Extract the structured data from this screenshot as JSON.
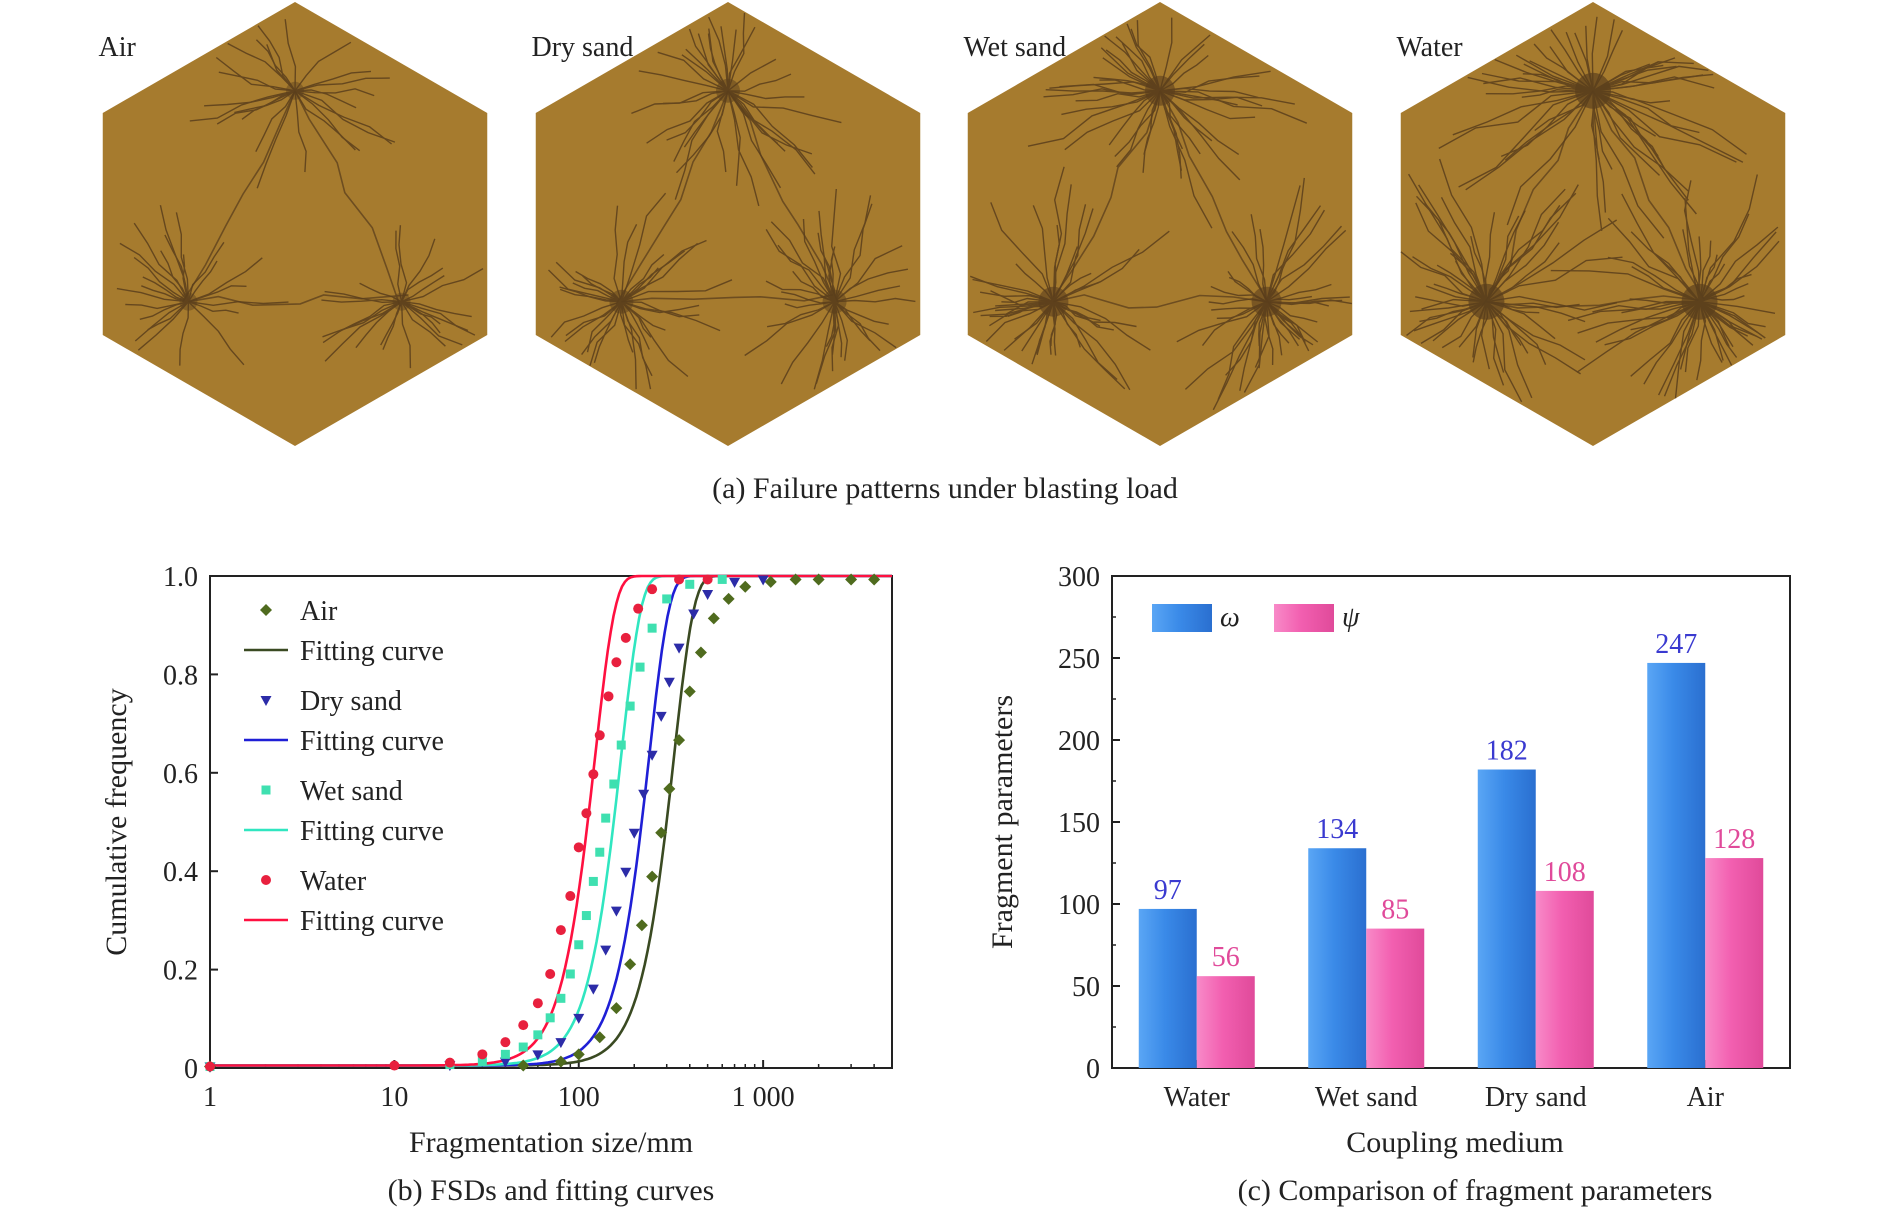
{
  "panel_a": {
    "caption": "(a) Failure patterns under blasting load",
    "specimens": [
      {
        "label": "Air",
        "fill": "#a67b2e",
        "crack": "#5a3e1c",
        "density": 1
      },
      {
        "label": "Dry sand",
        "fill": "#a67b2e",
        "crack": "#5a3e1c",
        "density": 2
      },
      {
        "label": "Wet sand",
        "fill": "#a67b2e",
        "crack": "#5a3e1c",
        "density": 3
      },
      {
        "label": "Water",
        "fill": "#a67b2e",
        "crack": "#5a3e1c",
        "density": 4
      }
    ]
  },
  "chart_data": [
    {
      "type": "scatter",
      "caption": "(b) FSDs and fitting curves",
      "xlabel": "Fragmentation size/mm",
      "ylabel": "Cumulative frequency",
      "xscale": "log",
      "xlim": [
        1,
        5000
      ],
      "ylim": [
        0,
        1.0
      ],
      "xticks": [
        1,
        10,
        100,
        1000
      ],
      "xtick_labels": [
        "1",
        "10",
        "100",
        "1 000"
      ],
      "yticks": [
        0,
        0.2,
        0.4,
        0.6,
        0.8,
        1.0
      ],
      "ytick_labels": [
        "0",
        "0.2",
        "0.4",
        "0.6",
        "0.8",
        "1.0"
      ],
      "legend_position": "top-left",
      "series": [
        {
          "name": "Air",
          "marker": "diamond",
          "color": "#4f6b1e",
          "fit_color": "#3a4a22",
          "fit_name": "Fitting curve",
          "x50": 300,
          "n": 4.0,
          "points": [
            [
              1,
              0
            ],
            [
              50,
              0.002
            ],
            [
              80,
              0.01
            ],
            [
              100,
              0.025
            ],
            [
              130,
              0.06
            ],
            [
              160,
              0.12
            ],
            [
              190,
              0.21
            ],
            [
              220,
              0.29
            ],
            [
              250,
              0.39
            ],
            [
              280,
              0.48
            ],
            [
              310,
              0.57
            ],
            [
              350,
              0.67
            ],
            [
              400,
              0.77
            ],
            [
              460,
              0.85
            ],
            [
              540,
              0.92
            ],
            [
              650,
              0.96
            ],
            [
              800,
              0.985
            ],
            [
              1100,
              0.995
            ],
            [
              1500,
              1.0
            ],
            [
              2000,
              1.0
            ],
            [
              3000,
              1.0
            ],
            [
              4000,
              1.0
            ]
          ]
        },
        {
          "name": "Dry sand",
          "marker": "triangle-down",
          "color": "#2c2ca8",
          "fit_color": "#1f1fd6",
          "fit_name": "Fitting curve",
          "x50": 220,
          "n": 4.0,
          "points": [
            [
              1,
              0
            ],
            [
              20,
              0.003
            ],
            [
              40,
              0.01
            ],
            [
              60,
              0.025
            ],
            [
              80,
              0.05
            ],
            [
              100,
              0.1
            ],
            [
              120,
              0.16
            ],
            [
              140,
              0.24
            ],
            [
              160,
              0.32
            ],
            [
              180,
              0.4
            ],
            [
              200,
              0.48
            ],
            [
              225,
              0.56
            ],
            [
              250,
              0.64
            ],
            [
              280,
              0.72
            ],
            [
              310,
              0.79
            ],
            [
              350,
              0.86
            ],
            [
              420,
              0.93
            ],
            [
              500,
              0.97
            ],
            [
              700,
              0.995
            ],
            [
              1000,
              1.0
            ]
          ]
        },
        {
          "name": "Wet sand",
          "marker": "square",
          "color": "#3fe0b0",
          "fit_color": "#30e6c0",
          "fit_name": "Fitting curve",
          "x50": 155,
          "n": 4.0,
          "points": [
            [
              1,
              0
            ],
            [
              20,
              0.004
            ],
            [
              30,
              0.01
            ],
            [
              40,
              0.025
            ],
            [
              50,
              0.04
            ],
            [
              60,
              0.065
            ],
            [
              70,
              0.1
            ],
            [
              80,
              0.14
            ],
            [
              90,
              0.19
            ],
            [
              100,
              0.25
            ],
            [
              110,
              0.31
            ],
            [
              120,
              0.38
            ],
            [
              130,
              0.44
            ],
            [
              140,
              0.51
            ],
            [
              155,
              0.58
            ],
            [
              170,
              0.66
            ],
            [
              190,
              0.74
            ],
            [
              215,
              0.82
            ],
            [
              250,
              0.9
            ],
            [
              300,
              0.96
            ],
            [
              400,
              0.99
            ],
            [
              600,
              1.0
            ]
          ]
        },
        {
          "name": "Water",
          "marker": "circle",
          "color": "#e8203e",
          "fit_color": "#ff1040",
          "fit_name": "Fitting curve",
          "x50": 112,
          "n": 4.0,
          "points": [
            [
              1,
              0
            ],
            [
              10,
              0.002
            ],
            [
              20,
              0.008
            ],
            [
              30,
              0.025
            ],
            [
              40,
              0.05
            ],
            [
              50,
              0.085
            ],
            [
              60,
              0.13
            ],
            [
              70,
              0.19
            ],
            [
              80,
              0.28
            ],
            [
              90,
              0.35
            ],
            [
              100,
              0.45
            ],
            [
              110,
              0.52
            ],
            [
              120,
              0.6
            ],
            [
              130,
              0.68
            ],
            [
              145,
              0.76
            ],
            [
              160,
              0.83
            ],
            [
              180,
              0.88
            ],
            [
              210,
              0.94
            ],
            [
              250,
              0.98
            ],
            [
              350,
              1.0
            ],
            [
              500,
              1.0
            ]
          ]
        }
      ]
    },
    {
      "type": "bar",
      "caption": "(c) Comparison of fragment parameters",
      "xlabel": "Coupling medium",
      "ylabel": "Fragment parameters",
      "categories": [
        "Water",
        "Wet sand",
        "Dry sand",
        "Air"
      ],
      "ylim": [
        0,
        300
      ],
      "yticks": [
        0,
        50,
        100,
        150,
        200,
        250,
        300
      ],
      "legend_position": "top-left",
      "series": [
        {
          "name": "ω",
          "color": "#3a8ae8",
          "label_color": "#3a3ad0",
          "values": [
            97,
            134,
            182,
            247
          ]
        },
        {
          "name": "ψ",
          "color": "#f25fb0",
          "label_color": "#e04a9a",
          "values": [
            56,
            85,
            108,
            128
          ]
        }
      ]
    }
  ]
}
